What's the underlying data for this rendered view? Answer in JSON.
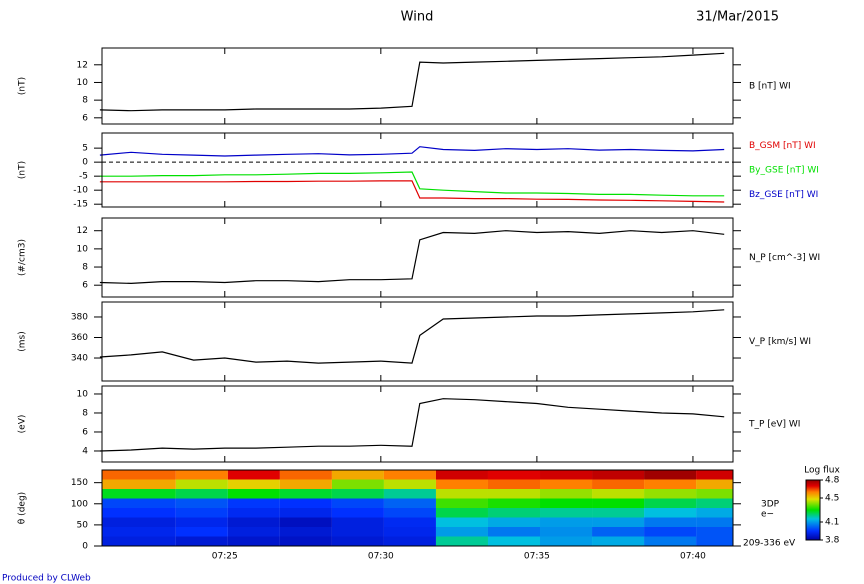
{
  "header": {
    "title": "Wind",
    "date": "31/Mar/2015"
  },
  "footer": "Produced by CLWeb",
  "chart_data": [
    {
      "type": "line",
      "y_label": "(nT)",
      "x": [
        "07:21",
        "07:22",
        "07:23",
        "07:24",
        "07:25",
        "07:26",
        "07:27",
        "07:28",
        "07:29",
        "07:30",
        "07:31",
        "07:31:15",
        "07:32",
        "07:33",
        "07:34",
        "07:35",
        "07:36",
        "07:37",
        "07:38",
        "07:39",
        "07:40",
        "07:41"
      ],
      "xlim": [
        "07:21:04",
        "07:41:17"
      ],
      "xticks": [
        "07:25",
        "07:30",
        "07:35",
        "07:40"
      ],
      "ylim": [
        5.3,
        13.9
      ],
      "yticks": [
        6,
        8,
        10,
        12
      ],
      "series": [
        {
          "name": "B [nT] WI",
          "color": "#000000",
          "values": [
            6.9,
            6.8,
            6.9,
            6.9,
            6.9,
            7.0,
            7.0,
            7.0,
            7.0,
            7.1,
            7.3,
            12.3,
            12.2,
            12.3,
            12.4,
            12.5,
            12.6,
            12.7,
            12.8,
            12.9,
            13.1,
            13.3
          ]
        }
      ]
    },
    {
      "type": "line",
      "y_label": "(nT)",
      "zero_line": true,
      "x": [
        "07:21",
        "07:22",
        "07:23",
        "07:24",
        "07:25",
        "07:26",
        "07:27",
        "07:28",
        "07:29",
        "07:30",
        "07:31",
        "07:31:15",
        "07:32",
        "07:33",
        "07:34",
        "07:35",
        "07:36",
        "07:37",
        "07:38",
        "07:39",
        "07:40",
        "07:41"
      ],
      "xlim": [
        "07:21:04",
        "07:41:17"
      ],
      "xticks": [
        "07:25",
        "07:30",
        "07:35",
        "07:40"
      ],
      "ylim": [
        -16,
        10.4
      ],
      "yticks": [
        -15,
        -10,
        -5,
        0,
        5
      ],
      "series": [
        {
          "name": "B_GSM [nT] WI",
          "color": "#e00000",
          "values": [
            -7.0,
            -7.0,
            -7.0,
            -7.0,
            -7.0,
            -6.9,
            -6.9,
            -6.8,
            -6.8,
            -6.7,
            -6.7,
            -12.8,
            -12.8,
            -13.0,
            -13.0,
            -13.2,
            -13.3,
            -13.5,
            -13.6,
            -13.8,
            -14.0,
            -14.2
          ]
        },
        {
          "name": "By_GSE [nT] WI",
          "color": "#00e000",
          "values": [
            -5.0,
            -5.0,
            -4.8,
            -4.8,
            -4.5,
            -4.5,
            -4.3,
            -4.0,
            -4.0,
            -3.8,
            -3.5,
            -9.5,
            -10.0,
            -10.5,
            -11.0,
            -11.0,
            -11.2,
            -11.5,
            -11.5,
            -11.8,
            -12.0,
            -12.0
          ]
        },
        {
          "name": "Bz_GSE [nT] WI",
          "color": "#0000c8",
          "values": [
            2.5,
            3.5,
            2.8,
            2.5,
            2.2,
            2.5,
            2.8,
            3.0,
            2.6,
            2.8,
            3.2,
            5.5,
            4.5,
            4.2,
            4.8,
            4.5,
            4.8,
            4.3,
            4.5,
            4.2,
            4.0,
            4.5
          ]
        }
      ]
    },
    {
      "type": "line",
      "y_label": "(#/cm3)",
      "x": [
        "07:21",
        "07:22",
        "07:23",
        "07:24",
        "07:25",
        "07:26",
        "07:27",
        "07:28",
        "07:29",
        "07:30",
        "07:31",
        "07:31:15",
        "07:32",
        "07:33",
        "07:34",
        "07:35",
        "07:36",
        "07:37",
        "07:38",
        "07:39",
        "07:40",
        "07:41"
      ],
      "xlim": [
        "07:21:04",
        "07:41:17"
      ],
      "xticks": [
        "07:25",
        "07:30",
        "07:35",
        "07:40"
      ],
      "ylim": [
        4.7,
        13.4
      ],
      "yticks": [
        6,
        8,
        10,
        12
      ],
      "series": [
        {
          "name": "N_P [cm^-3] WI",
          "color": "#000000",
          "values": [
            6.3,
            6.2,
            6.4,
            6.4,
            6.3,
            6.5,
            6.5,
            6.4,
            6.6,
            6.6,
            6.7,
            11.0,
            11.8,
            11.7,
            12.0,
            11.8,
            11.9,
            11.7,
            12.0,
            11.8,
            12.0,
            11.6
          ]
        }
      ]
    },
    {
      "type": "line",
      "y_label": "(ms)",
      "x": [
        "07:21",
        "07:22",
        "07:23",
        "07:24",
        "07:25",
        "07:26",
        "07:27",
        "07:28",
        "07:29",
        "07:30",
        "07:31",
        "07:31:15",
        "07:32",
        "07:33",
        "07:34",
        "07:35",
        "07:36",
        "07:37",
        "07:38",
        "07:39",
        "07:40",
        "07:41"
      ],
      "xlim": [
        "07:21:04",
        "07:41:17"
      ],
      "xticks": [
        "07:25",
        "07:30",
        "07:35",
        "07:40"
      ],
      "ylim": [
        317.6,
        394.6
      ],
      "yticks": [
        340,
        360,
        380
      ],
      "series": [
        {
          "name": "V_P [km/s] WI",
          "color": "#000000",
          "values": [
            341,
            343,
            346,
            338,
            340,
            336,
            337,
            335,
            336,
            337,
            335,
            362,
            378,
            379,
            380,
            381,
            381,
            382,
            383,
            384,
            385,
            387
          ]
        }
      ]
    },
    {
      "type": "line",
      "y_label": "(eV)",
      "x": [
        "07:21",
        "07:22",
        "07:23",
        "07:24",
        "07:25",
        "07:26",
        "07:27",
        "07:28",
        "07:29",
        "07:30",
        "07:31",
        "07:31:15",
        "07:32",
        "07:33",
        "07:34",
        "07:35",
        "07:36",
        "07:37",
        "07:38",
        "07:39",
        "07:40",
        "07:41"
      ],
      "xlim": [
        "07:21:04",
        "07:41:17"
      ],
      "xticks": [
        "07:25",
        "07:30",
        "07:35",
        "07:40"
      ],
      "ylim": [
        2.84,
        10.84
      ],
      "yticks": [
        4,
        6,
        8,
        10
      ],
      "series": [
        {
          "name": "T_P [eV] WI",
          "color": "#000000",
          "values": [
            4.0,
            4.1,
            4.3,
            4.2,
            4.3,
            4.3,
            4.4,
            4.5,
            4.5,
            4.6,
            4.5,
            9.0,
            9.5,
            9.4,
            9.2,
            9.0,
            8.6,
            8.4,
            8.2,
            8.0,
            7.9,
            7.6
          ]
        }
      ]
    },
    {
      "type": "heatmap",
      "y_label": "θ (deg)",
      "x_edges": [
        "07:21:04",
        "07:23:26",
        "07:25:06",
        "07:26:46",
        "07:28:26",
        "07:30:06",
        "07:31:46",
        "07:33:26",
        "07:35:06",
        "07:36:46",
        "07:38:26",
        "07:40:06",
        "07:41:17"
      ],
      "y_edges": [
        0,
        22.5,
        45,
        67.5,
        90,
        112.5,
        135,
        157.5,
        180
      ],
      "xlim": [
        "07:21:04",
        "07:41:17"
      ],
      "xticks": [
        "07:25",
        "07:30",
        "07:35",
        "07:40"
      ],
      "ylim": [
        0,
        180
      ],
      "yticks": [
        0,
        50,
        100,
        150
      ],
      "values": [
        [
          3.9,
          3.88,
          3.87,
          3.86,
          3.88,
          3.9,
          4.2,
          4.15,
          4.1,
          4.12,
          4.05,
          4.0
        ],
        [
          3.92,
          3.95,
          3.9,
          3.88,
          3.9,
          3.92,
          4.1,
          4.05,
          4.08,
          4.02,
          3.98,
          4.0
        ],
        [
          3.9,
          3.92,
          3.88,
          3.85,
          3.9,
          3.93,
          4.15,
          4.12,
          4.1,
          4.1,
          4.05,
          4.05
        ],
        [
          3.95,
          3.97,
          3.93,
          3.92,
          3.95,
          3.98,
          4.25,
          4.22,
          4.2,
          4.2,
          4.15,
          4.12
        ],
        [
          3.98,
          4.0,
          3.96,
          3.95,
          3.98,
          4.02,
          4.35,
          4.32,
          4.3,
          4.3,
          4.25,
          4.22
        ],
        [
          4.28,
          4.25,
          4.3,
          4.27,
          4.25,
          4.2,
          4.45,
          4.45,
          4.42,
          4.45,
          4.42,
          4.4
        ],
        [
          4.55,
          4.45,
          4.5,
          4.55,
          4.4,
          4.45,
          4.6,
          4.62,
          4.6,
          4.62,
          4.6,
          4.55
        ],
        [
          4.62,
          4.6,
          4.7,
          4.62,
          4.55,
          4.6,
          4.72,
          4.7,
          4.72,
          4.74,
          4.78,
          4.72
        ]
      ],
      "instrument": "3DP",
      "species": "e−",
      "energy": "209-336 eV",
      "colorbar": {
        "title": "Log flux",
        "lim": [
          3.8,
          4.8
        ],
        "ticks": [
          3.8,
          4.1,
          4.5,
          4.8
        ]
      }
    }
  ]
}
